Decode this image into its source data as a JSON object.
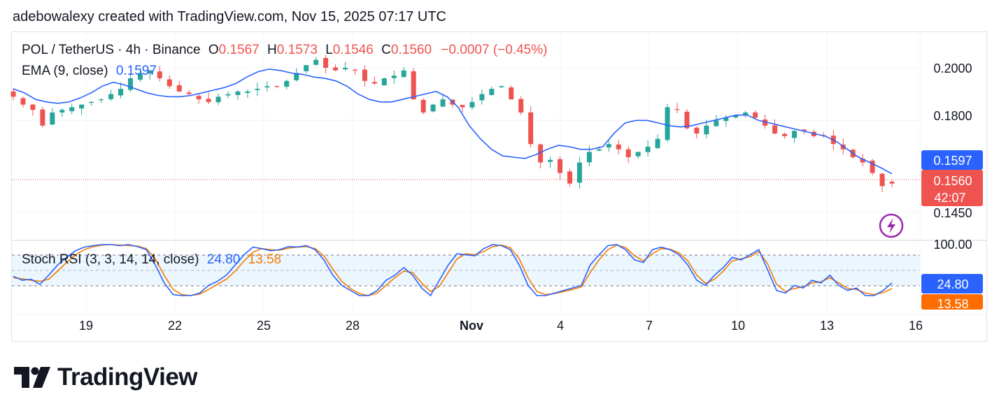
{
  "credit": "adebowalexy created with TradingView.com, Nov 15, 2025 07:17 UTC",
  "header": {
    "symbol": "POL / TetherUS · 4h · Binance",
    "open_label": "O",
    "open": "0.1567",
    "high_label": "H",
    "high": "0.1573",
    "low_label": "L",
    "low": "0.1546",
    "close_label": "C",
    "close": "0.1560",
    "change": "−0.0007 (−0.45%)"
  },
  "ema_legend": {
    "label": "EMA (9, close)",
    "value": "0.1597"
  },
  "rsi_legend": {
    "label": "Stoch RSI (3, 3, 14, 14, close)",
    "k_value": "24.80",
    "d_value": "13.58"
  },
  "price_axis": {
    "ticks": [
      "0.2000",
      "0.1800",
      "0.1450"
    ],
    "ema_badge": "0.1597",
    "price_badge": "0.1560",
    "countdown": "42:07"
  },
  "rsi_axis": {
    "top_tick": "100.00",
    "k_badge": "24.80",
    "d_badge": "13.58"
  },
  "time_axis": {
    "labels": [
      "19",
      "22",
      "25",
      "28",
      "Nov",
      "4",
      "7",
      "10",
      "13",
      "16"
    ]
  },
  "brand": {
    "name": "TradingView"
  },
  "colors": {
    "up": "#26a69a",
    "down": "#ef5350",
    "ema": "#2962ff",
    "stoch_k": "#2962ff",
    "stoch_d": "#f57c00",
    "band": "#e3f2fd",
    "lightning": "#9c27b0"
  },
  "chart_data": [
    {
      "type": "candlestick",
      "title": "POL / TetherUS · 4h · Binance",
      "x_labels": [
        "19",
        "22",
        "25",
        "28",
        "Nov",
        "4",
        "7",
        "10",
        "13",
        "16"
      ],
      "ylim": [
        0.14,
        0.21
      ],
      "y_ticks": [
        0.2,
        0.18,
        0.145
      ],
      "last": {
        "open": 0.1567,
        "high": 0.1573,
        "low": 0.1546,
        "close": 0.156
      },
      "close_path": [
        0.189,
        0.186,
        0.184,
        0.178,
        0.183,
        0.184,
        0.185,
        0.186,
        0.187,
        0.188,
        0.19,
        0.192,
        0.196,
        0.198,
        0.199,
        0.196,
        0.193,
        0.191,
        0.19,
        0.188,
        0.187,
        0.189,
        0.19,
        0.191,
        0.191,
        0.192,
        0.193,
        0.193,
        0.195,
        0.198,
        0.201,
        0.203,
        0.2,
        0.199,
        0.2,
        0.199,
        0.195,
        0.194,
        0.196,
        0.197,
        0.199,
        0.188,
        0.183,
        0.186,
        0.188,
        0.186,
        0.185,
        0.187,
        0.19,
        0.192,
        0.193,
        0.188,
        0.183,
        0.171,
        0.164,
        0.165,
        0.16,
        0.156,
        0.164,
        0.168,
        0.169,
        0.171,
        0.169,
        0.166,
        0.168,
        0.17,
        0.173,
        0.185,
        0.184,
        0.177,
        0.175,
        0.178,
        0.18,
        0.181,
        0.182,
        0.183,
        0.181,
        0.178,
        0.175,
        0.174,
        0.176,
        0.176,
        0.174,
        0.174,
        0.171,
        0.169,
        0.166,
        0.164,
        0.16,
        0.155,
        0.156
      ],
      "series": [
        {
          "name": "EMA (9, close)",
          "last": 0.1597,
          "values": [
            0.192,
            0.1905,
            0.188,
            0.187,
            0.1865,
            0.187,
            0.1885,
            0.1905,
            0.193,
            0.1945,
            0.1935,
            0.192,
            0.1905,
            0.1895,
            0.189,
            0.189,
            0.1895,
            0.1905,
            0.1915,
            0.1925,
            0.194,
            0.1965,
            0.1985,
            0.1995,
            0.199,
            0.198,
            0.1975,
            0.1965,
            0.196,
            0.195,
            0.193,
            0.19,
            0.188,
            0.187,
            0.187,
            0.188,
            0.189,
            0.19,
            0.191,
            0.189,
            0.185,
            0.178,
            0.173,
            0.169,
            0.1665,
            0.166,
            0.1655,
            0.167,
            0.169,
            0.1705,
            0.17,
            0.169,
            0.169,
            0.17,
            0.175,
            0.179,
            0.18,
            0.18,
            0.179,
            0.178,
            0.1775,
            0.178,
            0.179,
            0.18,
            0.181,
            0.182,
            0.182,
            0.18,
            0.179,
            0.178,
            0.177,
            0.176,
            0.175,
            0.174,
            0.172,
            0.169,
            0.166,
            0.164,
            0.162,
            0.1597
          ]
        }
      ]
    },
    {
      "type": "line",
      "title": "Stoch RSI (3, 3, 14, 14, close)",
      "ylim": [
        0,
        100
      ],
      "y_ticks": [
        100.0
      ],
      "bands": [
        20,
        80
      ],
      "series": [
        {
          "name": "%K",
          "last": 24.8,
          "values": [
            38,
            30,
            32,
            22,
            40,
            60,
            75,
            88,
            95,
            98,
            100,
            100,
            98,
            100,
            96,
            90,
            60,
            25,
            2,
            0,
            0,
            5,
            20,
            28,
            40,
            60,
            80,
            95,
            92,
            88,
            90,
            96,
            95,
            98,
            90,
            70,
            40,
            20,
            10,
            0,
            0,
            10,
            30,
            40,
            55,
            40,
            15,
            0,
            30,
            60,
            82,
            80,
            78,
            92,
            100,
            98,
            90,
            60,
            20,
            0,
            0,
            5,
            10,
            15,
            20,
            60,
            80,
            98,
            100,
            90,
            70,
            65,
            90,
            95,
            90,
            80,
            60,
            30,
            20,
            40,
            55,
            75,
            70,
            80,
            90,
            50,
            10,
            5,
            20,
            15,
            30,
            25,
            40,
            20,
            10,
            15,
            0,
            0,
            10,
            24.8
          ]
        },
        {
          "name": "%D",
          "last": 13.58,
          "values": [
            35,
            33,
            30,
            28,
            32,
            48,
            65,
            80,
            90,
            96,
            99,
            100,
            99,
            98,
            97,
            92,
            72,
            40,
            12,
            2,
            0,
            3,
            12,
            22,
            32,
            48,
            68,
            85,
            92,
            90,
            89,
            93,
            95,
            96,
            92,
            78,
            52,
            28,
            14,
            4,
            0,
            5,
            20,
            35,
            48,
            45,
            25,
            8,
            18,
            45,
            72,
            82,
            80,
            86,
            96,
            99,
            94,
            72,
            35,
            8,
            2,
            4,
            8,
            12,
            17,
            45,
            70,
            90,
            99,
            94,
            78,
            68,
            82,
            92,
            91,
            84,
            68,
            40,
            24,
            32,
            48,
            68,
            72,
            76,
            86,
            62,
            22,
            8,
            14,
            17,
            25,
            27,
            35,
            25,
            14,
            12,
            5,
            2,
            6,
            13.58
          ]
        }
      ]
    }
  ]
}
